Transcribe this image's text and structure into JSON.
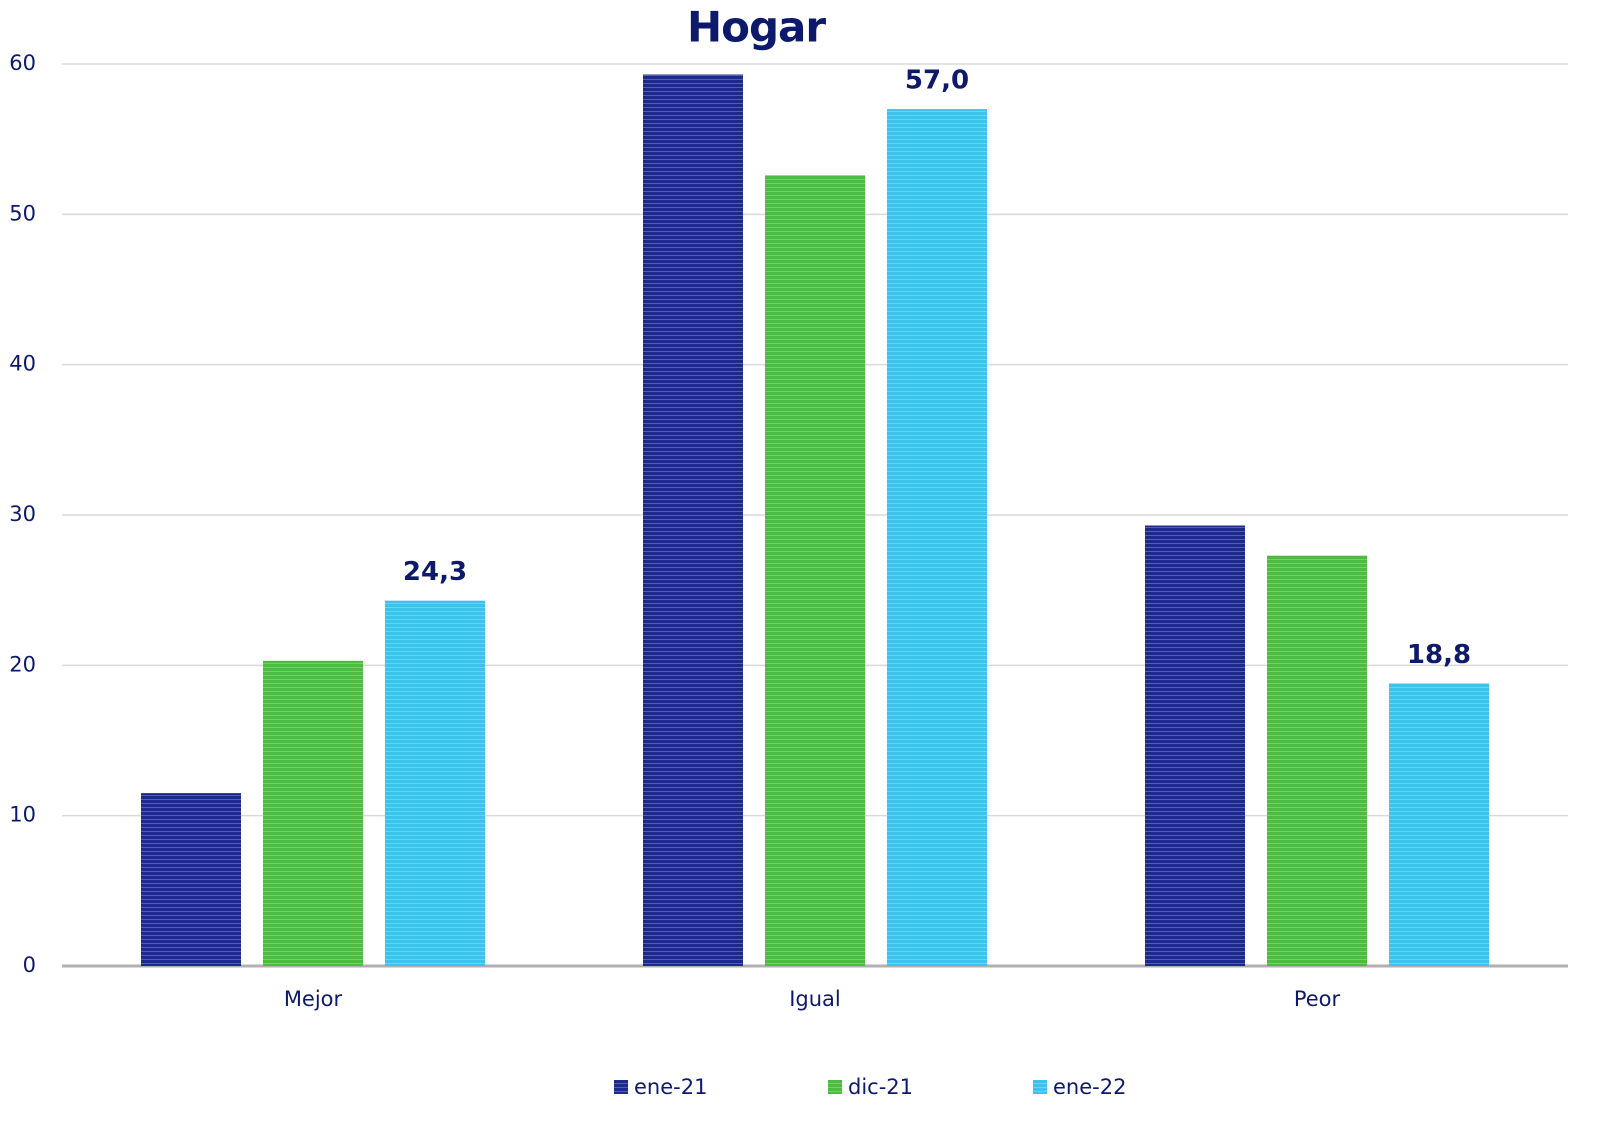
{
  "chart_data": {
    "type": "bar",
    "title": "Hogar",
    "categories": [
      "Mejor",
      "Igual",
      "Peor"
    ],
    "series": [
      {
        "name": "ene-21",
        "color": "#1b2a8c",
        "values": [
          11.5,
          59.3,
          29.3
        ]
      },
      {
        "name": "dic-21",
        "color": "#4dbb3f",
        "values": [
          20.3,
          52.6,
          27.3
        ]
      },
      {
        "name": "ene-22",
        "color": "#3ec1ec",
        "values": [
          24.3,
          57.0,
          18.8
        ],
        "value_labels": [
          "24,3",
          "57,0",
          "18,8"
        ]
      }
    ],
    "ylim": [
      0,
      60
    ],
    "yticks": [
      0,
      10,
      20,
      30,
      40,
      50,
      60
    ],
    "grid": true,
    "legend": "bottom"
  }
}
